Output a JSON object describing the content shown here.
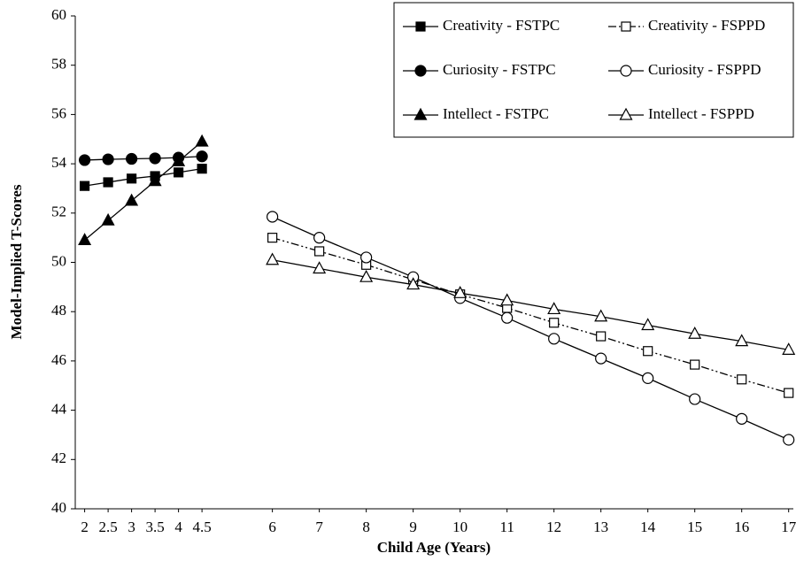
{
  "chart_data": {
    "type": "line",
    "xlabel": "Child Age (Years)",
    "ylabel": "Model-Implied T-Scores",
    "x": [
      2,
      2.5,
      3,
      3.5,
      4,
      4.5,
      6,
      7,
      8,
      9,
      10,
      11,
      12,
      13,
      14,
      15,
      16,
      17
    ],
    "xlim": [
      1.8,
      17.1
    ],
    "xticks": [
      2,
      2.5,
      3,
      3.5,
      4,
      4.5,
      6,
      7,
      8,
      9,
      10,
      11,
      12,
      13,
      14,
      15,
      16,
      17
    ],
    "ylim": [
      40,
      60
    ],
    "yticks": [
      40,
      42,
      44,
      46,
      48,
      50,
      52,
      54,
      56,
      58,
      60
    ],
    "grid": false,
    "legend": "top-right",
    "series": [
      {
        "name": "Creativity - FSTPC",
        "color": "#000000",
        "marker": "square",
        "filled": true,
        "dash": "solid",
        "values": [
          53.1,
          53.25,
          53.4,
          53.5,
          53.65,
          53.8,
          null,
          null,
          null,
          null,
          null,
          null,
          null,
          null,
          null,
          null,
          null,
          null
        ]
      },
      {
        "name": "Creativity - FSPPD",
        "color": "#000000",
        "marker": "square",
        "filled": false,
        "dash": "dash-dot-dot",
        "values": [
          null,
          null,
          null,
          null,
          null,
          null,
          51.0,
          50.45,
          49.9,
          49.3,
          48.7,
          48.15,
          47.55,
          47.0,
          46.4,
          45.85,
          45.25,
          44.7
        ]
      },
      {
        "name": "Curiosity - FSTPC",
        "color": "#000000",
        "marker": "circle",
        "filled": true,
        "dash": "solid",
        "values": [
          54.15,
          54.18,
          54.2,
          54.22,
          54.25,
          54.3,
          null,
          null,
          null,
          null,
          null,
          null,
          null,
          null,
          null,
          null,
          null,
          null
        ]
      },
      {
        "name": "Curiosity - FSPPD",
        "color": "#000000",
        "marker": "circle",
        "filled": false,
        "dash": "solid",
        "values": [
          null,
          null,
          null,
          null,
          null,
          null,
          51.85,
          51.0,
          50.2,
          49.4,
          48.55,
          47.75,
          46.9,
          46.1,
          45.3,
          44.45,
          43.65,
          42.8
        ]
      },
      {
        "name": "Intellect - FSTPC",
        "color": "#000000",
        "marker": "triangle",
        "filled": true,
        "dash": "solid",
        "values": [
          50.9,
          51.7,
          52.5,
          53.3,
          54.1,
          54.9,
          null,
          null,
          null,
          null,
          null,
          null,
          null,
          null,
          null,
          null,
          null,
          null
        ]
      },
      {
        "name": "Intellect - FSPPD",
        "color": "#000000",
        "marker": "triangle",
        "filled": false,
        "dash": "solid",
        "values": [
          null,
          null,
          null,
          null,
          null,
          null,
          50.1,
          49.75,
          49.4,
          49.1,
          48.75,
          48.45,
          48.1,
          47.8,
          47.45,
          47.1,
          46.8,
          46.45
        ]
      }
    ]
  }
}
